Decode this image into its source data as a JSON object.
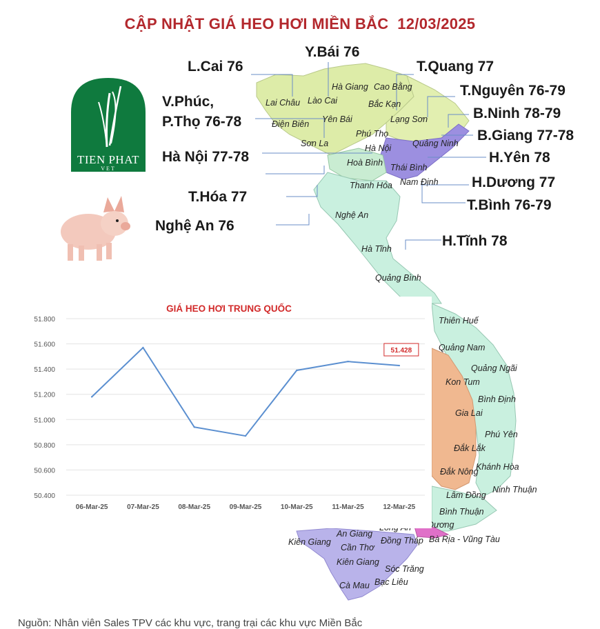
{
  "title": "CẬP NHẬT GIÁ HEO HƠI MIỀN BẮC  12/03/2025",
  "logo": {
    "name": "TIEN PHAT",
    "sub": "VET"
  },
  "province_prices": [
    {
      "key": "lcai",
      "text": "L.Cai 76"
    },
    {
      "key": "ybai",
      "text": "Y.Bái 76"
    },
    {
      "key": "tquang",
      "text": "T.Quang 77"
    },
    {
      "key": "tnguyen",
      "text": "T.Nguyên 76-79"
    },
    {
      "key": "vphuc",
      "text": "V.Phúc,"
    },
    {
      "key": "ptho",
      "text": "P.Thọ 76-78"
    },
    {
      "key": "bninh",
      "text": "B.Ninh 78-79"
    },
    {
      "key": "bgiang",
      "text": "B.Giang 77-78"
    },
    {
      "key": "hanoi",
      "text": "Hà Nội 77-78"
    },
    {
      "key": "hyen",
      "text": "H.Yên 78"
    },
    {
      "key": "hduong",
      "text": "H.Dương 77"
    },
    {
      "key": "thoa",
      "text": "T.Hóa 77"
    },
    {
      "key": "tbinh",
      "text": "T.Bình 76-79"
    },
    {
      "key": "nghean",
      "text": "Nghệ An 76"
    },
    {
      "key": "htinh",
      "text": "H.Tĩnh 78"
    }
  ],
  "map_labels": [
    "Hà Giang",
    "Cao Bằng",
    "Lào Cai",
    "Lai Châu",
    "Bắc Kạn",
    "Điện Biên",
    "Yên Bái",
    "Lạng Sơn",
    "Phú Thọ",
    "Sơn La",
    "Hà Nội",
    "Quảng Ninh",
    "Hoà Bình",
    "Thái Bình",
    "Nam Định",
    "Thanh Hóa",
    "Nghệ An",
    "Hà Tĩnh",
    "Quảng Bình",
    "Thiên Huế",
    "Quảng Nam",
    "Quảng Ngãi",
    "Kon Tum",
    "Bình Định",
    "Gia Lai",
    "Phú Yên",
    "Đắk Lắk",
    "Khánh Hòa",
    "Đắk Nông",
    "Lâm Đồng",
    "Ninh Thuận",
    "Bình Thuận",
    "Dương",
    "Long An",
    "An Giang",
    "Bà Rịa - Vũng Tàu",
    "Kiên Giang",
    "Đồng Tháp",
    "Cần Thơ",
    "Kiên Giang",
    "Sóc Trăng",
    "Bạc Liêu",
    "Cà Mau"
  ],
  "chart_data": {
    "type": "line",
    "title": "GIÁ HEO HƠI TRUNG QUỐC",
    "categories": [
      "06-Mar-25",
      "07-Mar-25",
      "08-Mar-25",
      "09-Mar-25",
      "10-Mar-25",
      "11-Mar-25",
      "12-Mar-25"
    ],
    "series": [
      {
        "values": [
          51.18,
          51.57,
          50.94,
          50.87,
          51.39,
          51.46,
          51.428
        ],
        "color": "#5b8fd0"
      }
    ],
    "y_ticks": [
      "50.400",
      "50.600",
      "50.800",
      "51.000",
      "51.200",
      "51.400",
      "51.600",
      "51.800"
    ],
    "ylim": [
      50.4,
      51.8
    ],
    "grid": true,
    "annotation": {
      "text": "51.428",
      "point": "12-Mar-25",
      "color": "#d22a2a"
    }
  },
  "footer": "Nguồn: Nhân viên Sales TPV các khu vực, trang trại các khu vực Miền Bắc"
}
